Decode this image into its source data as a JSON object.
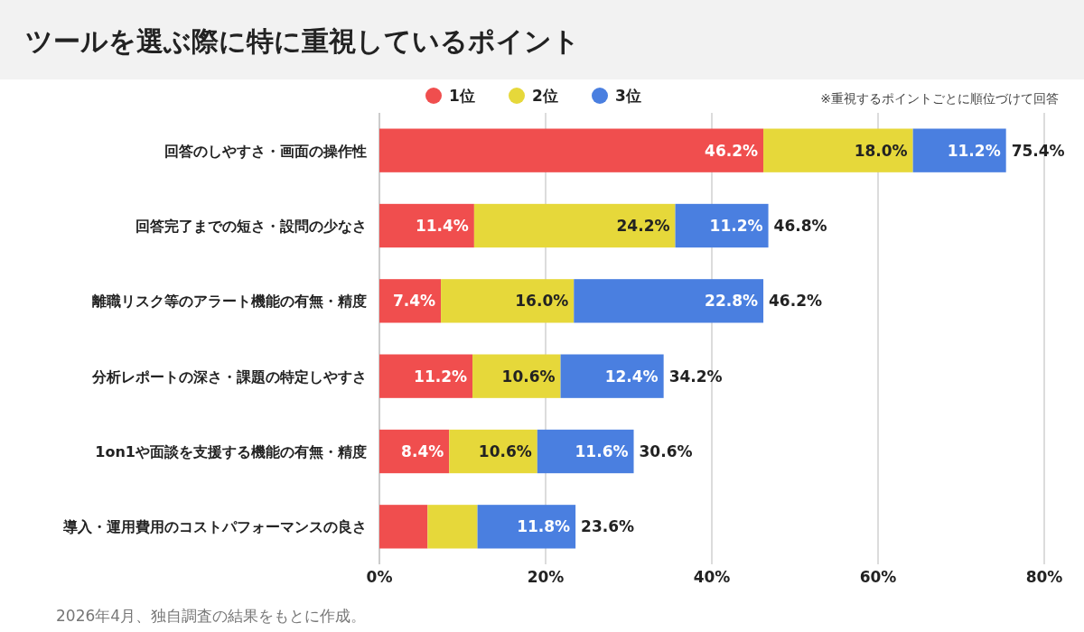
{
  "chart_data": {
    "type": "bar",
    "orientation": "horizontal",
    "stacked": true,
    "title": "ツールを選ぶ際に特に重視しているポイント",
    "categories": [
      "回答のしやすさ・画面の操作性",
      "回答完了までの短さ・設問の少なさ",
      "離職リスク等のアラート機能の有無・精度",
      "分析レポートの深さ・課題の特定しやすさ",
      "1on1や面談を支援する機能の有無・精度",
      "導入・運用費用のコストパフォーマンスの良さ"
    ],
    "series": [
      {
        "name": "1位",
        "color": "#f04e4e",
        "values": [
          46.2,
          11.4,
          7.4,
          11.2,
          8.4,
          5.8
        ],
        "value_labels": [
          "46.2%",
          "11.4%",
          "7.4%",
          "11.2%",
          "8.4%",
          null
        ]
      },
      {
        "name": "2位",
        "color": "#e6d83a",
        "values": [
          18.0,
          24.2,
          16.0,
          10.6,
          10.6,
          6.0
        ],
        "value_labels": [
          "18.0%",
          "24.2%",
          "16.0%",
          "10.6%",
          "10.6%",
          null
        ]
      },
      {
        "name": "3位",
        "color": "#4a7fe0",
        "values": [
          11.2,
          11.2,
          22.8,
          12.4,
          11.6,
          11.8
        ],
        "value_labels": [
          "11.2%",
          "11.2%",
          "22.8%",
          "12.4%",
          "11.6%",
          "11.8%"
        ]
      }
    ],
    "totals": [
      "75.4%",
      "46.8%",
      "46.2%",
      "34.2%",
      "30.6%",
      "23.6%"
    ],
    "xlim": [
      0,
      80
    ],
    "xticks": [
      {
        "value": 0,
        "label": "0%"
      },
      {
        "value": 20,
        "label": "20%"
      },
      {
        "value": 40,
        "label": "40%"
      },
      {
        "value": 60,
        "label": "60%"
      },
      {
        "value": 80,
        "label": "80%"
      }
    ],
    "grid": "x",
    "legend": "top",
    "annotations": [
      "※重視するポイントごとに順位づけて回答",
      "2026年4月、独自調査の結果をもとに作成。"
    ]
  }
}
